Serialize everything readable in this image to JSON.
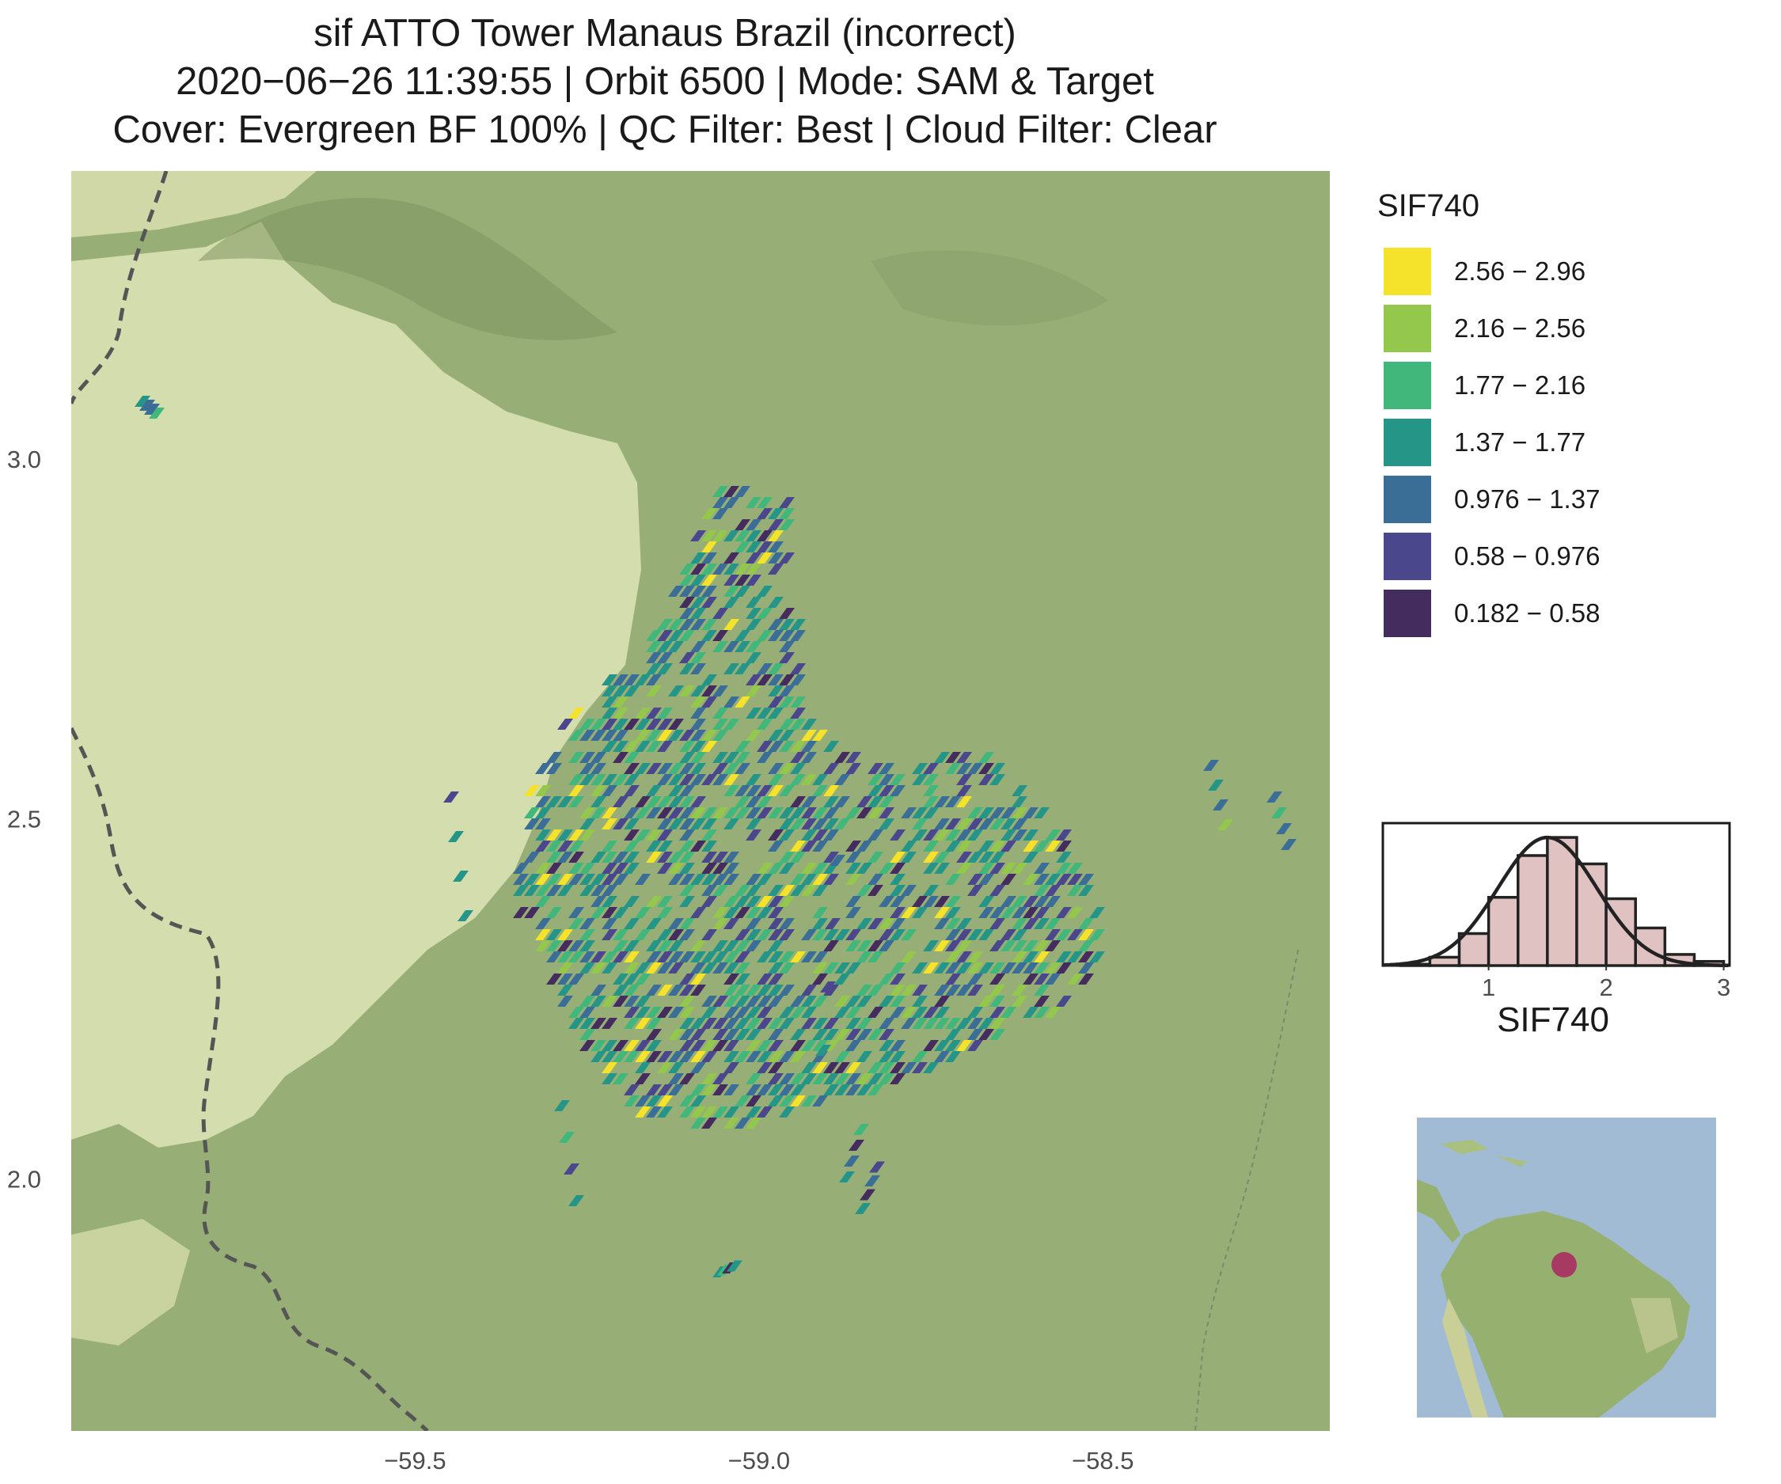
{
  "title": {
    "line1": "sif ATTO Tower Manaus Brazil (incorrect)",
    "line2": "2020−06−26 11:39:55 | Orbit 6500 | Mode: SAM & Target",
    "line3": "Cover: Evergreen BF 100% | QC Filter: Best | Cloud Filter: Clear"
  },
  "map": {
    "x_ticks": [
      "−59.5",
      "−59.0",
      "−58.5"
    ],
    "x_tick_values": [
      -59.5,
      -59.0,
      -58.5
    ],
    "y_ticks": [
      "3.0",
      "2.5",
      "2.0"
    ],
    "y_tick_values": [
      3.0,
      2.5,
      2.0
    ],
    "xlim": [
      -60.0,
      -58.17
    ],
    "ylim": [
      1.65,
      3.4
    ],
    "colors": {
      "forest": "#98ae77",
      "savanna": "#d4ddae",
      "border": "#555555"
    }
  },
  "legend": {
    "title": "SIF740",
    "items": [
      {
        "label": "2.56 − 2.96",
        "color": "#f4e22b"
      },
      {
        "label": "2.16 − 2.56",
        "color": "#93c84d"
      },
      {
        "label": "1.77 − 2.16",
        "color": "#41b77c"
      },
      {
        "label": "1.37 − 1.77",
        "color": "#259588"
      },
      {
        "label": "0.976 − 1.37",
        "color": "#3b6e97"
      },
      {
        "label": "0.58 − 0.976",
        "color": "#4a478d"
      },
      {
        "label": "0.182 − 0.58",
        "color": "#452c5e"
      }
    ]
  },
  "histogram": {
    "xlabel": "SIF740",
    "x_ticks": [
      "1",
      "2",
      "3"
    ],
    "x_tick_values": [
      1,
      2,
      3
    ],
    "xlim": [
      0.1,
      3.05
    ],
    "bin_edges": [
      0.25,
      0.5,
      0.75,
      1.0,
      1.25,
      1.5,
      1.75,
      2.0,
      2.25,
      2.5,
      2.75,
      3.0
    ],
    "counts": [
      0.01,
      0.06,
      0.23,
      0.49,
      0.79,
      0.92,
      0.73,
      0.48,
      0.27,
      0.08,
      0.03
    ],
    "fill_color": "#e1c2c2"
  },
  "inset": {
    "water_color": "#a2bbd4",
    "land_color": "#95b06f",
    "marker_color": "#a63a62"
  }
}
